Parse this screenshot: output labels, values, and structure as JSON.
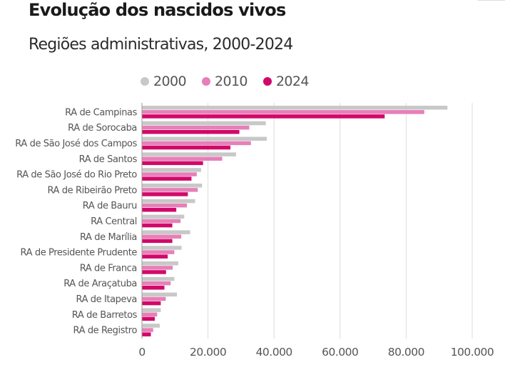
{
  "header": {
    "title": "Evolução dos nascidos vivos",
    "subtitle": "Regiões administrativas, 2000-2024"
  },
  "chart_data": {
    "type": "bar",
    "orientation": "horizontal",
    "title": "Evolução dos nascidos vivos",
    "subtitle": "Regiões administrativas, 2000-2024",
    "xlabel": "",
    "ylabel": "",
    "xlim": [
      0,
      100000
    ],
    "ticks": [
      0,
      20000,
      40000,
      60000,
      80000,
      100000
    ],
    "tick_labels": [
      "0",
      "20.000",
      "40.000",
      "60.000",
      "80.000",
      "100.000"
    ],
    "grid": "vertical",
    "legend": "top-left",
    "categories": [
      "RA de Campinas",
      "RA de Sorocaba",
      "RA de São José dos Campos",
      "RA de Santos",
      "RA de São José do Rio Preto",
      "RA de Ribeirão Preto",
      "RA de Bauru",
      "RA Central",
      "RA de Marília",
      "RA de Presidente Prudente",
      "RA de Franca",
      "RA de Araçatuba",
      "RA de Itapeva",
      "RA de Barretos",
      "RA de Registro"
    ],
    "series": [
      {
        "name": "2000",
        "color": "#c8c8c8",
        "values": [
          92500,
          37500,
          37800,
          28500,
          17900,
          18200,
          16100,
          12800,
          14600,
          12000,
          11000,
          9800,
          10600,
          5700,
          5400
        ]
      },
      {
        "name": "2010",
        "color": "#e77fb8",
        "values": [
          85500,
          32500,
          33000,
          24300,
          16600,
          16900,
          13600,
          11700,
          11900,
          9800,
          9300,
          8700,
          7200,
          4600,
          3400
        ]
      },
      {
        "name": "2024",
        "color": "#d1086b",
        "values": [
          73500,
          29500,
          26800,
          18500,
          15000,
          13900,
          10400,
          9200,
          9200,
          7800,
          7300,
          6800,
          5700,
          3900,
          2700
        ]
      }
    ]
  }
}
